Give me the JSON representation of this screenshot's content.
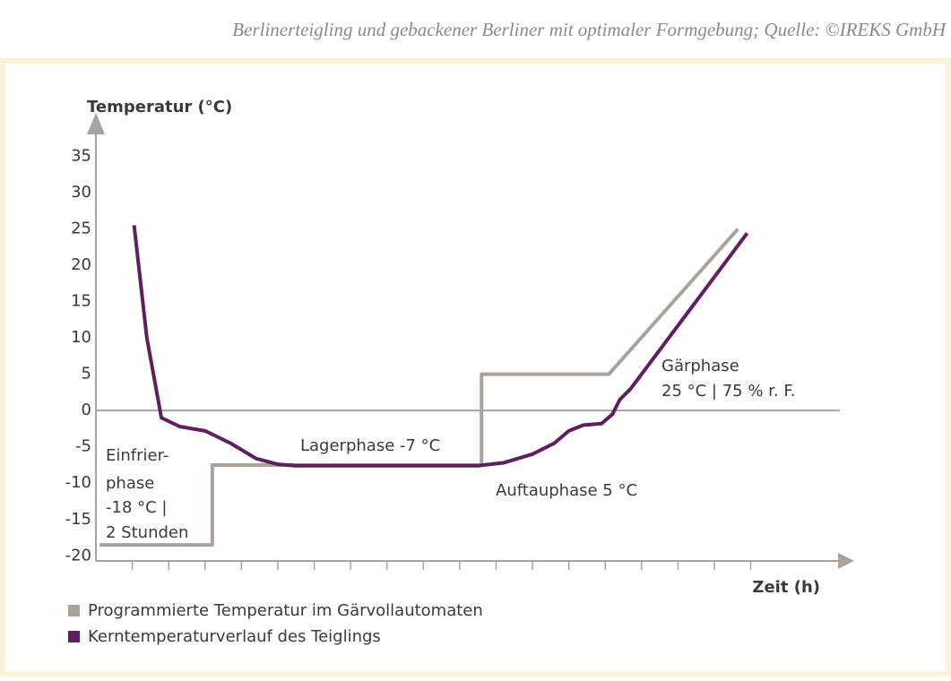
{
  "chart_data": {
    "type": "line",
    "caption": "Berlinerteigling und gebackener Berliner mit optimaler Formgebung; Quelle: ©IREKS GmbH",
    "y_label": "Temperatur (°C)",
    "x_label": "Zeit (h)",
    "ylim": [
      -20.7,
      38
    ],
    "yticks": [
      -20,
      -15,
      -10,
      -5,
      0,
      5,
      10,
      15,
      20,
      25,
      30,
      35
    ],
    "xlim": [
      0,
      20.4
    ],
    "xticks": [
      1,
      2,
      3,
      4,
      5,
      6,
      7,
      8,
      9,
      10,
      11,
      12,
      13,
      14,
      15,
      16,
      17,
      18
    ],
    "reference_line": 0,
    "series": [
      {
        "name": "Programmierte Temperatur im Gärvollautomaten",
        "color": "#aba39b",
        "x": [
          0.1,
          3.2,
          3.2,
          10.6,
          10.6,
          14.1,
          17.65
        ],
        "values": [
          -18.5,
          -18.5,
          -7.5,
          -7.5,
          5,
          5,
          25
        ]
      },
      {
        "name": "Kerntemperaturverlauf des Teiglings",
        "color": "#5f1e5f",
        "x": [
          1.05,
          1.4,
          1.8,
          2.3,
          3.0,
          3.7,
          4.4,
          5.0,
          5.5,
          10.5,
          11.2,
          12.0,
          12.6,
          13.0,
          13.4,
          13.9,
          14.2,
          14.4,
          14.7,
          17.9
        ],
        "values": [
          25.5,
          10,
          -1,
          -2.2,
          -2.8,
          -4.5,
          -6.6,
          -7.4,
          -7.6,
          -7.6,
          -7.2,
          -6,
          -4.5,
          -2.8,
          -2,
          -1.8,
          -0.5,
          1.5,
          3,
          24.4
        ]
      }
    ],
    "annotations": [
      "Einfrier-",
      "phase",
      "-18 °C  |",
      "2 Stunden",
      "Lagerphase -7 °C",
      "Auftauphase 5 °C",
      "Gärphase",
      "25 °C | 75 % r. F."
    ]
  }
}
